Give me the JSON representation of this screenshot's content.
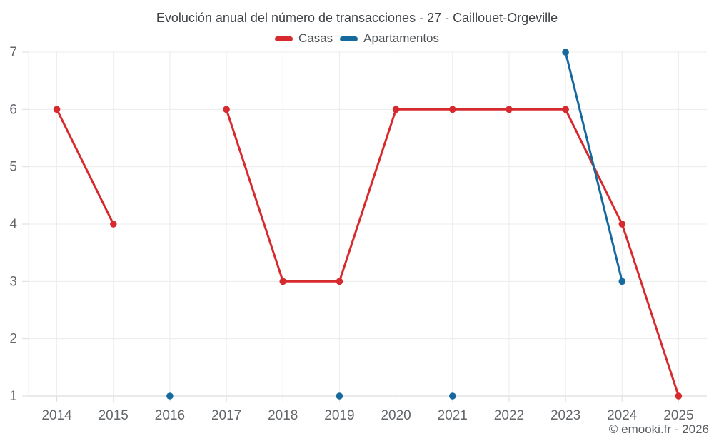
{
  "title": "Evolución anual del número de transacciones - 27 - Caillouet-Orgeville",
  "attribution": "© emooki.fr - 2026",
  "colors": {
    "casas": "#d62a2e",
    "apartamentos": "#16699d",
    "grid": "#ececec",
    "axis": "#d4d4d4",
    "tick": "#dcdcdc",
    "tick_label": "#63676b",
    "background": "#ffffff"
  },
  "chart_data": {
    "type": "line",
    "title": "Evolución anual del número de transacciones - 27 - Caillouet-Orgeville",
    "categories": [
      "2014",
      "2015",
      "2016",
      "2017",
      "2018",
      "2019",
      "2020",
      "2021",
      "2022",
      "2023",
      "2024",
      "2025"
    ],
    "series": [
      {
        "name": "Casas",
        "color": "#d62a2e",
        "values": [
          6,
          4,
          null,
          6,
          3,
          3,
          6,
          6,
          6,
          6,
          4,
          1
        ]
      },
      {
        "name": "Apartamentos",
        "color": "#16699d",
        "values": [
          null,
          null,
          1,
          null,
          null,
          1,
          null,
          1,
          null,
          7,
          3,
          null
        ]
      }
    ],
    "xlabel": "",
    "ylabel": "",
    "ylim": [
      1,
      7
    ],
    "yticks": [
      1,
      2,
      3,
      4,
      5,
      6,
      7
    ],
    "grid": true,
    "legend_position": "top",
    "marker": "circle"
  }
}
